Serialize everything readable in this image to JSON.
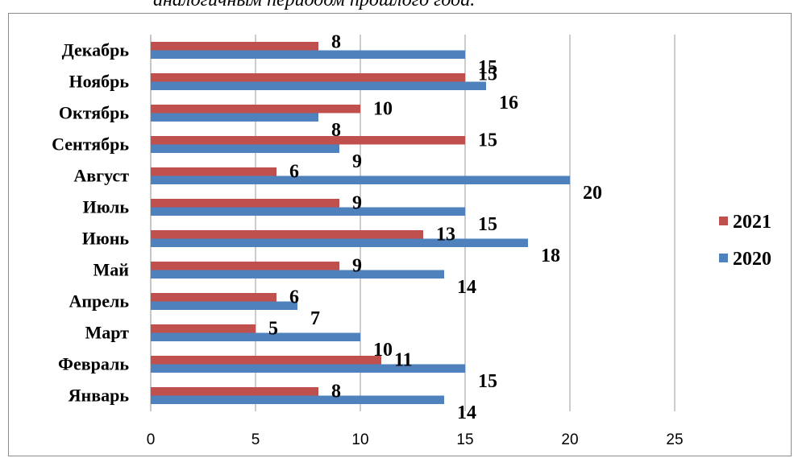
{
  "page": {
    "top_caption": "аналогичным периодом прошлого года."
  },
  "chart_data": {
    "type": "bar",
    "orientation": "horizontal",
    "categories": [
      "Январь",
      "Февраль",
      "Март",
      "Апрель",
      "Май",
      "Июнь",
      "Июль",
      "Август",
      "Сентябрь",
      "Октябрь",
      "Ноябрь",
      "Декабрь"
    ],
    "series": [
      {
        "name": "2020",
        "color": "#4f81bd",
        "values": [
          14,
          15,
          10,
          7,
          14,
          18,
          15,
          20,
          9,
          8,
          16,
          15
        ]
      },
      {
        "name": "2021",
        "color": "#c0504d",
        "values": [
          8,
          11,
          5,
          6,
          9,
          13,
          9,
          6,
          15,
          10,
          15,
          8
        ]
      }
    ],
    "xlim": [
      0,
      25
    ],
    "xticks": [
      0,
      5,
      10,
      15,
      20,
      25
    ],
    "grid": true,
    "legend": {
      "placement": "right",
      "order": [
        "2021",
        "2020"
      ]
    },
    "title": "",
    "xlabel": "",
    "ylabel": "",
    "data_labels": true
  }
}
